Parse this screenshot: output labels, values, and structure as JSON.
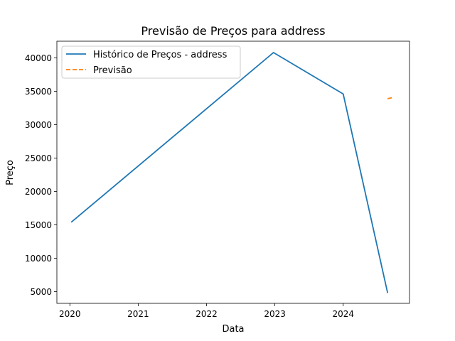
{
  "chart_data": {
    "type": "line",
    "title": "Previsão de Preços para address",
    "xlabel": "Data",
    "ylabel": "Preço",
    "xlim": [
      2019.81,
      2024.97
    ],
    "ylim": [
      3250,
      42500
    ],
    "x_ticks": [
      2020,
      2021,
      2022,
      2023,
      2024
    ],
    "y_ticks": [
      5000,
      10000,
      15000,
      20000,
      25000,
      30000,
      35000,
      40000
    ],
    "grid": false,
    "legend_position": "top-left",
    "series": [
      {
        "name": "Histórico de Preços - address",
        "color": "#1f77b4",
        "style": "solid",
        "x": [
          2020.02,
          2022.98,
          2024.0,
          2024.65
        ],
        "y": [
          15400,
          40800,
          34600,
          4800
        ]
      },
      {
        "name": "Previsão",
        "color": "#ff7f0e",
        "style": "dashed",
        "x": [
          2024.65,
          2024.72
        ],
        "y": [
          33900,
          34050
        ]
      }
    ]
  }
}
